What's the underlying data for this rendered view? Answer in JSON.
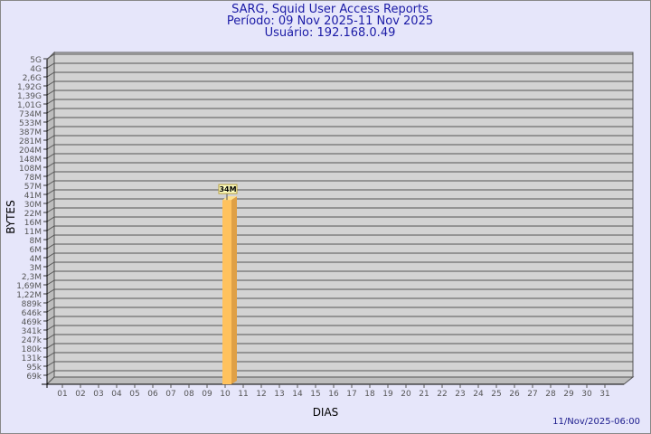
{
  "header": {
    "title": "SARG, Squid User Access Reports",
    "period": "Período: 09 Nov 2025-11 Nov 2025",
    "user": "Usuário: 192.168.0.49"
  },
  "footer": {
    "timestamp": "11/Nov/2025-06:00"
  },
  "colors": {
    "background": "#e6e6fa",
    "plot": "#d3d3d3",
    "bar": "#ffc25e",
    "bar_side": "#dfa046",
    "title": "#1a1aa6"
  },
  "chart_data": {
    "type": "bar",
    "xlabel": "DIAS",
    "ylabel": "BYTES",
    "y_scale": "log",
    "y_ticks": [
      "5G",
      "4G",
      "2,6G",
      "1,92G",
      "1,39G",
      "1,01G",
      "734M",
      "533M",
      "387M",
      "281M",
      "204M",
      "148M",
      "108M",
      "78M",
      "57M",
      "41M",
      "30M",
      "22M",
      "16M",
      "11M",
      "8M",
      "6M",
      "4M",
      "3M",
      "2,3M",
      "1,69M",
      "1,22M",
      "889k",
      "646k",
      "469k",
      "341k",
      "247k",
      "180k",
      "131k",
      "95k",
      "69k"
    ],
    "categories": [
      "01",
      "02",
      "03",
      "04",
      "05",
      "06",
      "07",
      "08",
      "09",
      "10",
      "11",
      "12",
      "13",
      "14",
      "15",
      "16",
      "17",
      "18",
      "19",
      "20",
      "21",
      "22",
      "23",
      "24",
      "25",
      "26",
      "27",
      "28",
      "29",
      "30",
      "31"
    ],
    "bars": [
      {
        "category": "10",
        "value_bytes": 34000000,
        "label": "34M"
      }
    ],
    "grid": true
  }
}
